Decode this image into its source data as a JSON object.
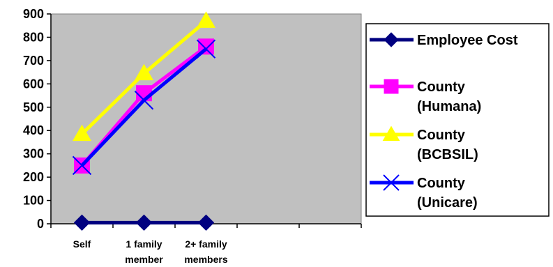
{
  "chart_data": {
    "type": "line",
    "title": "",
    "xlabel": "",
    "ylabel": "",
    "ylim": [
      0,
      900
    ],
    "yticks": [
      0,
      100,
      200,
      300,
      400,
      500,
      600,
      700,
      800,
      900
    ],
    "grid": false,
    "plot_background": "#c0c0c0",
    "legend_placement": "right",
    "categories": [
      [
        "Self"
      ],
      [
        "1 family",
        "member"
      ],
      [
        "2+ family",
        "members"
      ]
    ],
    "series": [
      {
        "name": [
          "Employee Cost"
        ],
        "values": [
          5,
          5,
          5
        ],
        "color": "#000080",
        "marker": "diamond"
      },
      {
        "name": [
          "County",
          "(Humana)"
        ],
        "values": [
          250,
          560,
          760
        ],
        "color": "#ff00ff",
        "marker": "square"
      },
      {
        "name": [
          "County",
          "(BCBSIL)"
        ],
        "values": [
          385,
          645,
          870
        ],
        "color": "#ffff00",
        "marker": "triangle"
      },
      {
        "name": [
          "County",
          "(Unicare)"
        ],
        "values": [
          250,
          530,
          750
        ],
        "color": "#0000ff",
        "marker": "x"
      }
    ]
  }
}
